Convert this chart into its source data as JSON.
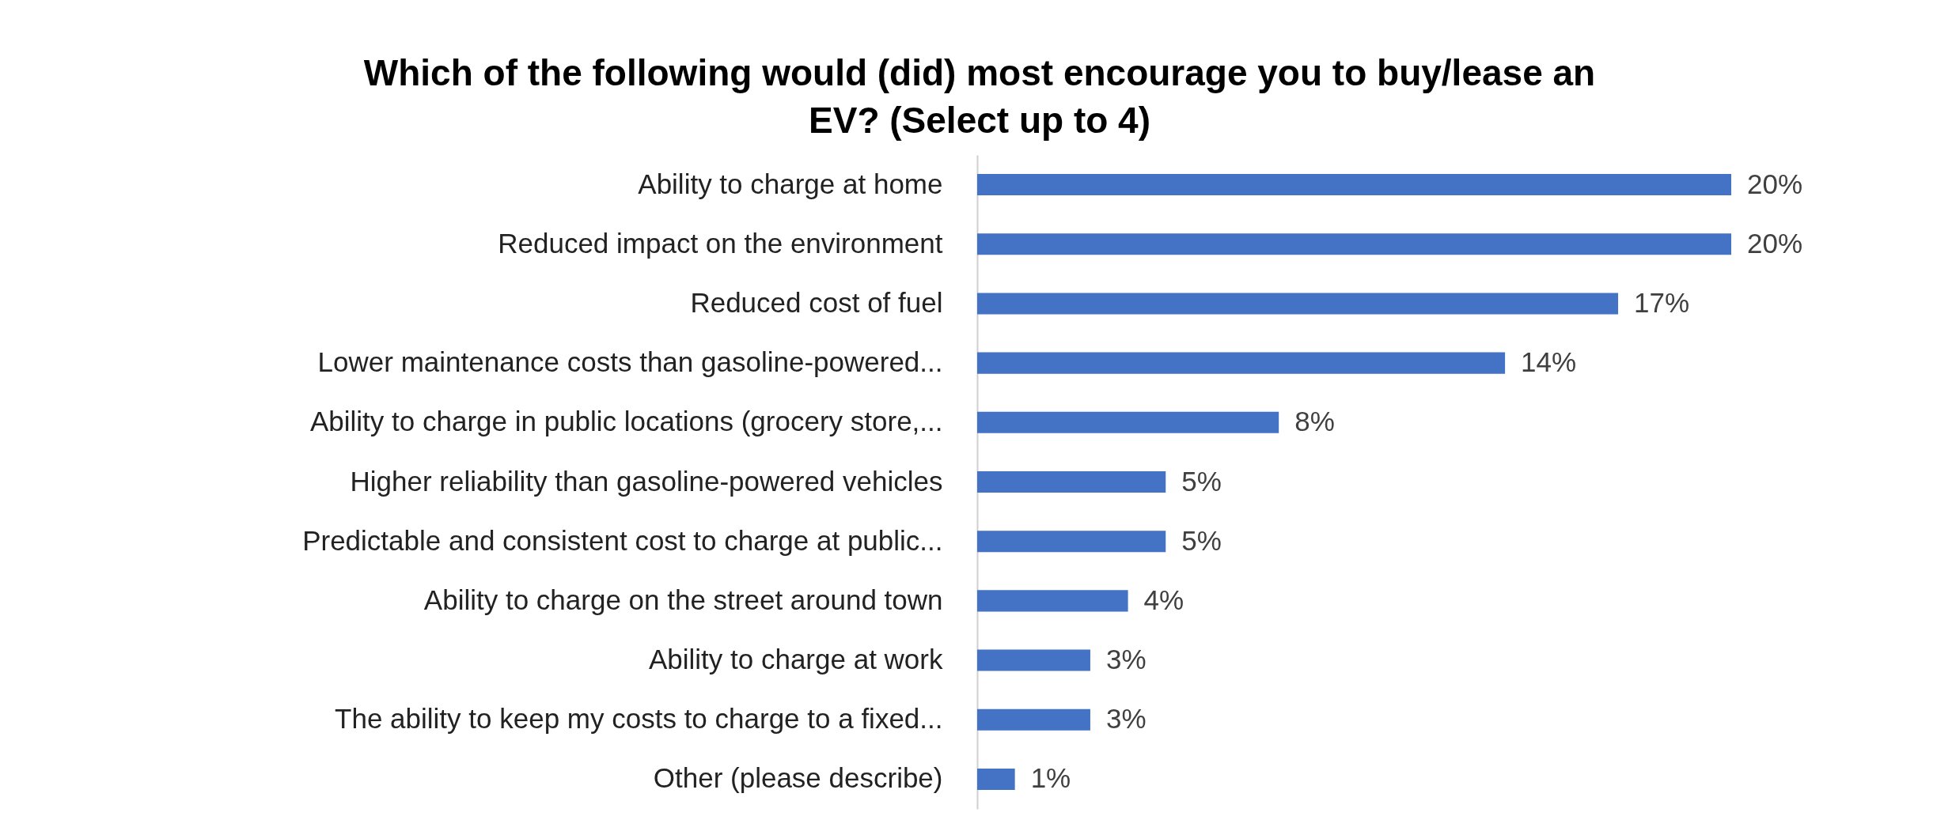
{
  "chart_data": {
    "type": "bar",
    "orientation": "horizontal",
    "title": "Which of the following would (did) most encourage you to buy/lease an EV? (Select up to 4)",
    "categories": [
      "Ability to charge at home",
      "Reduced impact on the environment",
      "Reduced cost of fuel",
      "Lower maintenance costs than gasoline-powered...",
      "Ability to charge in public locations (grocery store,...",
      "Higher reliability than gasoline-powered vehicles",
      "Predictable and consistent cost to charge at public...",
      "Ability to charge on the street around town",
      "Ability to charge at work",
      "The ability to keep my costs to charge to a fixed...",
      "Other (please describe)"
    ],
    "values": [
      20,
      20,
      17,
      14,
      8,
      5,
      5,
      4,
      3,
      3,
      1
    ],
    "value_labels": [
      "20%",
      "20%",
      "17%",
      "14%",
      "8%",
      "5%",
      "5%",
      "4%",
      "3%",
      "3%",
      "1%"
    ],
    "color": "#4472c4"
  }
}
